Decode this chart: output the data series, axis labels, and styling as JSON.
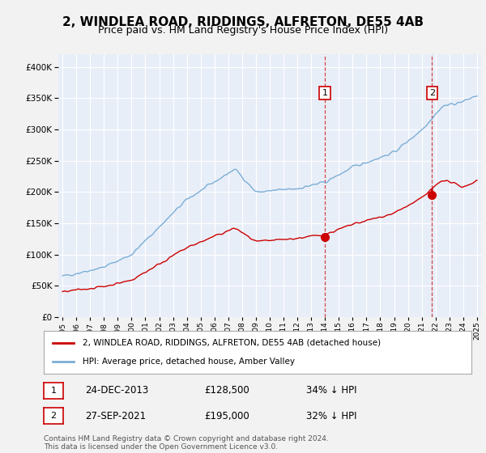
{
  "title": "2, WINDLEA ROAD, RIDDINGS, ALFRETON, DE55 4AB",
  "subtitle": "Price paid vs. HM Land Registry's House Price Index (HPI)",
  "ylim": [
    0,
    420000
  ],
  "yticks": [
    0,
    50000,
    100000,
    150000,
    200000,
    250000,
    300000,
    350000,
    400000
  ],
  "xlim_start": 1994.7,
  "xlim_end": 2025.3,
  "transaction1": {
    "year": 2013.98,
    "value": 128500,
    "label": "1",
    "date": "24-DEC-2013",
    "price": "£128,500",
    "pct": "34% ↓ HPI"
  },
  "transaction2": {
    "year": 2021.75,
    "value": 195000,
    "label": "2",
    "date": "27-SEP-2021",
    "price": "£195,000",
    "pct": "32% ↓ HPI"
  },
  "legend_line1": "2, WINDLEA ROAD, RIDDINGS, ALFRETON, DE55 4AB (detached house)",
  "legend_line2": "HPI: Average price, detached house, Amber Valley",
  "footnote": "Contains HM Land Registry data © Crown copyright and database right 2024.\nThis data is licensed under the Open Government Licence v3.0.",
  "line_color_red": "#cc0000",
  "line_color_blue": "#7aaed6",
  "background_color": "#e8eef8",
  "fig_background": "#f2f2f2",
  "grid_color": "#ffffff",
  "vline_color": "#cc3333",
  "box_edge_color": "#cc0000",
  "title_fontsize": 11,
  "subtitle_fontsize": 9
}
